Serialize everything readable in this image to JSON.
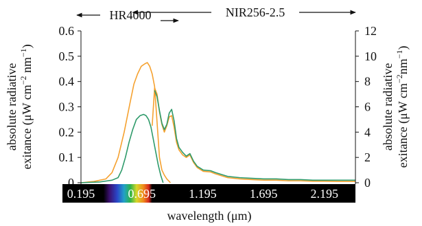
{
  "chart_data": {
    "type": "line",
    "xlabel": "wavelength (μm)",
    "ylabel_left": "absolute radiative exitance (μW cm⁻² nm⁻¹)",
    "ylabel_left_lines": [
      "absolute radiative",
      "exitance (μW cm",
      "−2",
      " nm",
      "−1",
      ")"
    ],
    "ylabel_right_lines": [
      "absolute radiative",
      "exitance (μW cm",
      "−2",
      "nm",
      "−1",
      ")"
    ],
    "y_left_range": [
      0,
      0.6
    ],
    "y_left_ticks": [
      "0",
      "0.1",
      "0.2",
      "0.3",
      "0.4",
      "0.5",
      "0.6"
    ],
    "y_right_range": [
      0,
      12
    ],
    "y_right_ticks": [
      "0",
      "2",
      "4",
      "6",
      "8",
      "10",
      "12"
    ],
    "x_range": [
      0.195,
      2.45
    ],
    "x_tick_labels": [
      "0.195",
      "0.695",
      "1.195",
      "1.695",
      "2.195"
    ],
    "x_tick_values": [
      0.195,
      0.695,
      1.195,
      1.695,
      2.195
    ],
    "instrument_labels": [
      {
        "text": "HR4000",
        "range_um": [
          0.195,
          0.995
        ]
      },
      {
        "text": "NIR256-2.5",
        "range_um": [
          0.62,
          2.45
        ]
      }
    ],
    "grid": false,
    "series": [
      {
        "color": "#f5a12f",
        "points": [
          [
            0.195,
            0.0
          ],
          [
            0.3,
            0.005
          ],
          [
            0.4,
            0.015
          ],
          [
            0.45,
            0.04
          ],
          [
            0.5,
            0.1
          ],
          [
            0.55,
            0.2
          ],
          [
            0.6,
            0.32
          ],
          [
            0.63,
            0.39
          ],
          [
            0.66,
            0.43
          ],
          [
            0.69,
            0.46
          ],
          [
            0.72,
            0.47
          ],
          [
            0.74,
            0.475
          ],
          [
            0.76,
            0.46
          ],
          [
            0.78,
            0.43
          ],
          [
            0.8,
            0.38
          ],
          [
            0.82,
            0.24
          ],
          [
            0.84,
            0.1
          ],
          [
            0.86,
            0.05
          ],
          [
            0.88,
            0.03
          ],
          [
            0.9,
            0.015
          ],
          [
            0.93,
            0.0
          ]
        ]
      },
      {
        "color": "#f5a12f",
        "points": [
          [
            0.78,
            4.5
          ],
          [
            0.8,
            7.5
          ],
          [
            0.82,
            7.0
          ],
          [
            0.84,
            5.6
          ],
          [
            0.86,
            4.6
          ],
          [
            0.88,
            4.0
          ],
          [
            0.9,
            4.5
          ],
          [
            0.92,
            5.2
          ],
          [
            0.94,
            5.3
          ],
          [
            0.96,
            4.4
          ],
          [
            0.98,
            3.2
          ],
          [
            1.0,
            2.6
          ],
          [
            1.03,
            2.2
          ],
          [
            1.06,
            2.0
          ],
          [
            1.09,
            2.2
          ],
          [
            1.12,
            1.6
          ],
          [
            1.15,
            1.2
          ],
          [
            1.2,
            0.9
          ],
          [
            1.26,
            0.85
          ],
          [
            1.3,
            0.7
          ],
          [
            1.4,
            0.4
          ],
          [
            1.5,
            0.3
          ],
          [
            1.6,
            0.25
          ],
          [
            1.7,
            0.2
          ],
          [
            1.8,
            0.2
          ],
          [
            1.9,
            0.15
          ],
          [
            2.0,
            0.15
          ],
          [
            2.1,
            0.12
          ],
          [
            2.2,
            0.12
          ],
          [
            2.3,
            0.1
          ],
          [
            2.4,
            0.1
          ],
          [
            2.45,
            0.1
          ]
        ]
      },
      {
        "color": "#2e9a6a",
        "points": [
          [
            0.195,
            0.0
          ],
          [
            0.35,
            0.003
          ],
          [
            0.45,
            0.01
          ],
          [
            0.5,
            0.02
          ],
          [
            0.53,
            0.05
          ],
          [
            0.56,
            0.1
          ],
          [
            0.59,
            0.16
          ],
          [
            0.62,
            0.21
          ],
          [
            0.65,
            0.25
          ],
          [
            0.68,
            0.265
          ],
          [
            0.71,
            0.27
          ],
          [
            0.73,
            0.265
          ],
          [
            0.75,
            0.25
          ],
          [
            0.77,
            0.22
          ],
          [
            0.79,
            0.17
          ],
          [
            0.81,
            0.12
          ],
          [
            0.83,
            0.07
          ],
          [
            0.85,
            0.03
          ],
          [
            0.87,
            0.0
          ]
        ]
      },
      {
        "color": "#2e9a6a",
        "points": [
          [
            0.8,
            7.3
          ],
          [
            0.82,
            6.8
          ],
          [
            0.84,
            5.7
          ],
          [
            0.86,
            4.7
          ],
          [
            0.88,
            4.2
          ],
          [
            0.9,
            4.6
          ],
          [
            0.92,
            5.5
          ],
          [
            0.94,
            5.8
          ],
          [
            0.96,
            4.9
          ],
          [
            0.98,
            3.5
          ],
          [
            1.0,
            2.8
          ],
          [
            1.03,
            2.4
          ],
          [
            1.06,
            2.1
          ],
          [
            1.09,
            2.3
          ],
          [
            1.12,
            1.7
          ],
          [
            1.15,
            1.3
          ],
          [
            1.2,
            1.0
          ],
          [
            1.26,
            0.95
          ],
          [
            1.3,
            0.8
          ],
          [
            1.4,
            0.5
          ],
          [
            1.5,
            0.4
          ],
          [
            1.6,
            0.35
          ],
          [
            1.7,
            0.3
          ],
          [
            1.8,
            0.3
          ],
          [
            1.9,
            0.25
          ],
          [
            2.0,
            0.25
          ],
          [
            2.1,
            0.2
          ],
          [
            2.2,
            0.2
          ],
          [
            2.3,
            0.2
          ],
          [
            2.4,
            0.2
          ],
          [
            2.45,
            0.2
          ]
        ]
      }
    ]
  }
}
